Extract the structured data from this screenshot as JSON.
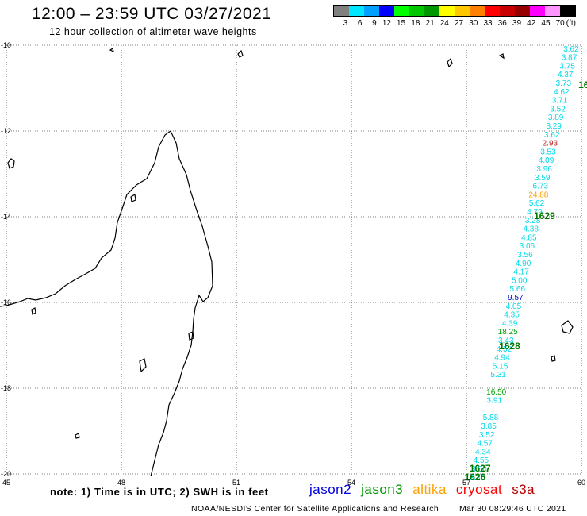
{
  "header": {
    "title": "12:00 – 23:59 UTC 03/27/2021",
    "subtitle": "12 hour collection of altimeter wave heights"
  },
  "color_scale": {
    "unit": "(ft)",
    "labels": [
      "3",
      "6",
      "9",
      "12",
      "15",
      "18",
      "21",
      "24",
      "27",
      "30",
      "33",
      "36",
      "39",
      "42",
      "45",
      "70"
    ],
    "colors": [
      "#808080",
      "#00e6ff",
      "#00a0ff",
      "#0000ff",
      "#00ff00",
      "#00c800",
      "#009600",
      "#ffff00",
      "#ffc800",
      "#ff8000",
      "#ff0000",
      "#c80000",
      "#960000",
      "#ff00ff",
      "#ff96ff",
      "#000000"
    ]
  },
  "map": {
    "lon_labels": [
      "45",
      "48",
      "51",
      "54",
      "57",
      "60"
    ],
    "lat_labels": [
      "-10",
      "-12",
      "-14",
      "-16",
      "-18",
      "-20"
    ],
    "wave_colors": {
      "cyan": "#00d8e8",
      "green": "#00a000",
      "orange": "#ffa000",
      "red": "#b83030",
      "blue": "#0000c8"
    },
    "track": [
      {
        "v": "3.62",
        "lon": 59.73,
        "lat": -10.07,
        "c": "cyan"
      },
      {
        "v": "3.87",
        "lon": 59.68,
        "lat": -10.27,
        "c": "cyan"
      },
      {
        "v": "3.75",
        "lon": 59.63,
        "lat": -10.47,
        "c": "cyan"
      },
      {
        "v": "4.37",
        "lon": 59.58,
        "lat": -10.67,
        "c": "cyan"
      },
      {
        "v": "3.73",
        "lon": 59.53,
        "lat": -10.87,
        "c": "cyan"
      },
      {
        "v": "4.62",
        "lon": 59.48,
        "lat": -11.07,
        "c": "cyan"
      },
      {
        "v": "3.71",
        "lon": 59.43,
        "lat": -11.27,
        "c": "cyan"
      },
      {
        "v": "3.52",
        "lon": 59.38,
        "lat": -11.47,
        "c": "cyan"
      },
      {
        "v": "3.89",
        "lon": 59.33,
        "lat": -11.67,
        "c": "cyan"
      },
      {
        "v": "3.29",
        "lon": 59.28,
        "lat": -11.87,
        "c": "cyan"
      },
      {
        "v": "3.62",
        "lon": 59.23,
        "lat": -12.07,
        "c": "cyan"
      },
      {
        "v": "2.93",
        "lon": 59.18,
        "lat": -12.27,
        "c": "red"
      },
      {
        "v": "3.53",
        "lon": 59.13,
        "lat": -12.47,
        "c": "cyan"
      },
      {
        "v": "4.09",
        "lon": 59.08,
        "lat": -12.67,
        "c": "cyan"
      },
      {
        "v": "3.96",
        "lon": 59.03,
        "lat": -12.87,
        "c": "cyan"
      },
      {
        "v": "3.59",
        "lon": 58.98,
        "lat": -13.07,
        "c": "cyan"
      },
      {
        "v": "6.73",
        "lon": 58.93,
        "lat": -13.27,
        "c": "cyan"
      },
      {
        "v": "24.88",
        "lon": 58.88,
        "lat": -13.47,
        "c": "orange"
      },
      {
        "v": "5.62",
        "lon": 58.83,
        "lat": -13.67,
        "c": "cyan"
      },
      {
        "v": "4.79",
        "lon": 58.78,
        "lat": -13.87,
        "c": "cyan"
      },
      {
        "v": "3.28",
        "lon": 58.73,
        "lat": -14.07,
        "c": "cyan"
      },
      {
        "v": "4.38",
        "lon": 58.68,
        "lat": -14.27,
        "c": "cyan"
      },
      {
        "v": "4.85",
        "lon": 58.63,
        "lat": -14.47,
        "c": "cyan"
      },
      {
        "v": "3.06",
        "lon": 58.58,
        "lat": -14.67,
        "c": "cyan"
      },
      {
        "v": "3.56",
        "lon": 58.53,
        "lat": -14.87,
        "c": "cyan"
      },
      {
        "v": "4.90",
        "lon": 58.48,
        "lat": -15.07,
        "c": "cyan"
      },
      {
        "v": "4.17",
        "lon": 58.43,
        "lat": -15.27,
        "c": "cyan"
      },
      {
        "v": "5.00",
        "lon": 58.38,
        "lat": -15.47,
        "c": "cyan"
      },
      {
        "v": "5.66",
        "lon": 58.33,
        "lat": -15.67,
        "c": "cyan"
      },
      {
        "v": "9.57",
        "lon": 58.28,
        "lat": -15.87,
        "c": "blue"
      },
      {
        "v": "4.05",
        "lon": 58.23,
        "lat": -16.07,
        "c": "cyan"
      },
      {
        "v": "4.35",
        "lon": 58.18,
        "lat": -16.27,
        "c": "cyan"
      },
      {
        "v": "4.39",
        "lon": 58.13,
        "lat": -16.47,
        "c": "cyan"
      },
      {
        "v": "18.25",
        "lon": 58.08,
        "lat": -16.67,
        "c": "green"
      },
      {
        "v": "3.43",
        "lon": 58.03,
        "lat": -16.87,
        "c": "cyan"
      },
      {
        "v": "4.52",
        "lon": 57.98,
        "lat": -17.07,
        "c": "cyan"
      },
      {
        "v": "4.94",
        "lon": 57.93,
        "lat": -17.27,
        "c": "cyan"
      },
      {
        "v": "5.15",
        "lon": 57.88,
        "lat": -17.47,
        "c": "cyan"
      },
      {
        "v": "5.31",
        "lon": 57.83,
        "lat": -17.67,
        "c": "cyan"
      },
      {
        "v": "16.50",
        "lon": 57.78,
        "lat": -18.07,
        "c": "green"
      },
      {
        "v": "3.91",
        "lon": 57.73,
        "lat": -18.27,
        "c": "cyan"
      },
      {
        "v": "5.88",
        "lon": 57.63,
        "lat": -18.67,
        "c": "cyan"
      },
      {
        "v": "3.85",
        "lon": 57.58,
        "lat": -18.87,
        "c": "cyan"
      },
      {
        "v": "3.52",
        "lon": 57.53,
        "lat": -19.07,
        "c": "cyan"
      },
      {
        "v": "4.57",
        "lon": 57.48,
        "lat": -19.27,
        "c": "cyan"
      },
      {
        "v": "4.34",
        "lon": 57.43,
        "lat": -19.47,
        "c": "cyan"
      },
      {
        "v": "4.55",
        "lon": 57.38,
        "lat": -19.67,
        "c": "cyan"
      },
      {
        "v": "3.50",
        "lon": 57.33,
        "lat": -19.87,
        "c": "cyan"
      },
      {
        "v": "3.30",
        "lon": 57.28,
        "lat": -20.07,
        "c": "cyan"
      }
    ],
    "passes": [
      {
        "label": "16",
        "lon": 59.92,
        "lat": -10.93
      },
      {
        "label": "1629",
        "lon": 58.76,
        "lat": -13.98
      },
      {
        "label": "1628",
        "lon": 57.85,
        "lat": -17.02
      },
      {
        "label": "1627",
        "lon": 57.08,
        "lat": -19.87
      },
      {
        "label": "1626",
        "lon": 56.95,
        "lat": -20.07
      }
    ]
  },
  "footer": {
    "note": "note: 1) Time is in UTC; 2) SWH is in feet",
    "missions": [
      {
        "name": "jason2",
        "color": "#0000e0"
      },
      {
        "name": "jason3",
        "color": "#009600"
      },
      {
        "name": "altika",
        "color": "#ffa000"
      },
      {
        "name": "cryosat",
        "color": "#ff0000"
      },
      {
        "name": "s3a",
        "color": "#b40000"
      }
    ],
    "credit": "NOAA/NESDIS Center for Satellite Applications and Research",
    "timestamp": "Mar 30 08:29:46 UTC 2021"
  }
}
